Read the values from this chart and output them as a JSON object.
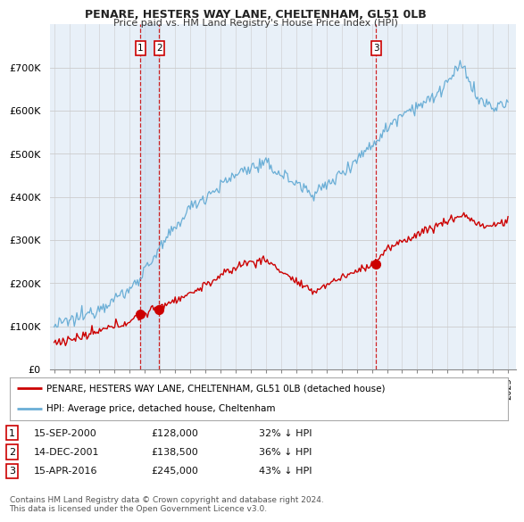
{
  "title": "PENARE, HESTERS WAY LANE, CHELTENHAM, GL51 0LB",
  "subtitle": "Price paid vs. HM Land Registry's House Price Index (HPI)",
  "xlim_start": 1994.7,
  "xlim_end": 2025.5,
  "ylim": [
    0,
    800000
  ],
  "yticks": [
    0,
    100000,
    200000,
    300000,
    400000,
    500000,
    600000,
    700000
  ],
  "ytick_labels": [
    "£0",
    "£100K",
    "£200K",
    "£300K",
    "£400K",
    "£500K",
    "£600K",
    "£700K"
  ],
  "red_line_color": "#cc0000",
  "blue_line_color": "#6aaed6",
  "grid_color": "#cccccc",
  "background_color": "#ffffff",
  "plot_bg_color": "#e8f0f8",
  "vline_color": "#cc0000",
  "shade_color": "#ccdff0",
  "marker_color": "#cc0000",
  "sale_markers": [
    {
      "year": 2000.71,
      "value": 128000,
      "label": "1"
    },
    {
      "year": 2001.95,
      "value": 138500,
      "label": "2"
    },
    {
      "year": 2016.29,
      "value": 245000,
      "label": "3"
    }
  ],
  "shade_between": [
    2000.71,
    2001.95
  ],
  "legend_entries": [
    {
      "label": "PENARE, HESTERS WAY LANE, CHELTENHAM, GL51 0LB (detached house)",
      "color": "#cc0000"
    },
    {
      "label": "HPI: Average price, detached house, Cheltenham",
      "color": "#6aaed6"
    }
  ],
  "table_rows": [
    {
      "num": "1",
      "date": "15-SEP-2000",
      "price": "£128,000",
      "hpi": "32% ↓ HPI"
    },
    {
      "num": "2",
      "date": "14-DEC-2001",
      "price": "£138,500",
      "hpi": "36% ↓ HPI"
    },
    {
      "num": "3",
      "date": "15-APR-2016",
      "price": "£245,000",
      "hpi": "43% ↓ HPI"
    }
  ],
  "footer": "Contains HM Land Registry data © Crown copyright and database right 2024.\nThis data is licensed under the Open Government Licence v3.0.",
  "xtick_years": [
    1995,
    1996,
    1997,
    1998,
    1999,
    2000,
    2001,
    2002,
    2003,
    2004,
    2005,
    2006,
    2007,
    2008,
    2009,
    2010,
    2011,
    2012,
    2013,
    2014,
    2015,
    2016,
    2017,
    2018,
    2019,
    2020,
    2021,
    2022,
    2023,
    2024,
    2025
  ]
}
